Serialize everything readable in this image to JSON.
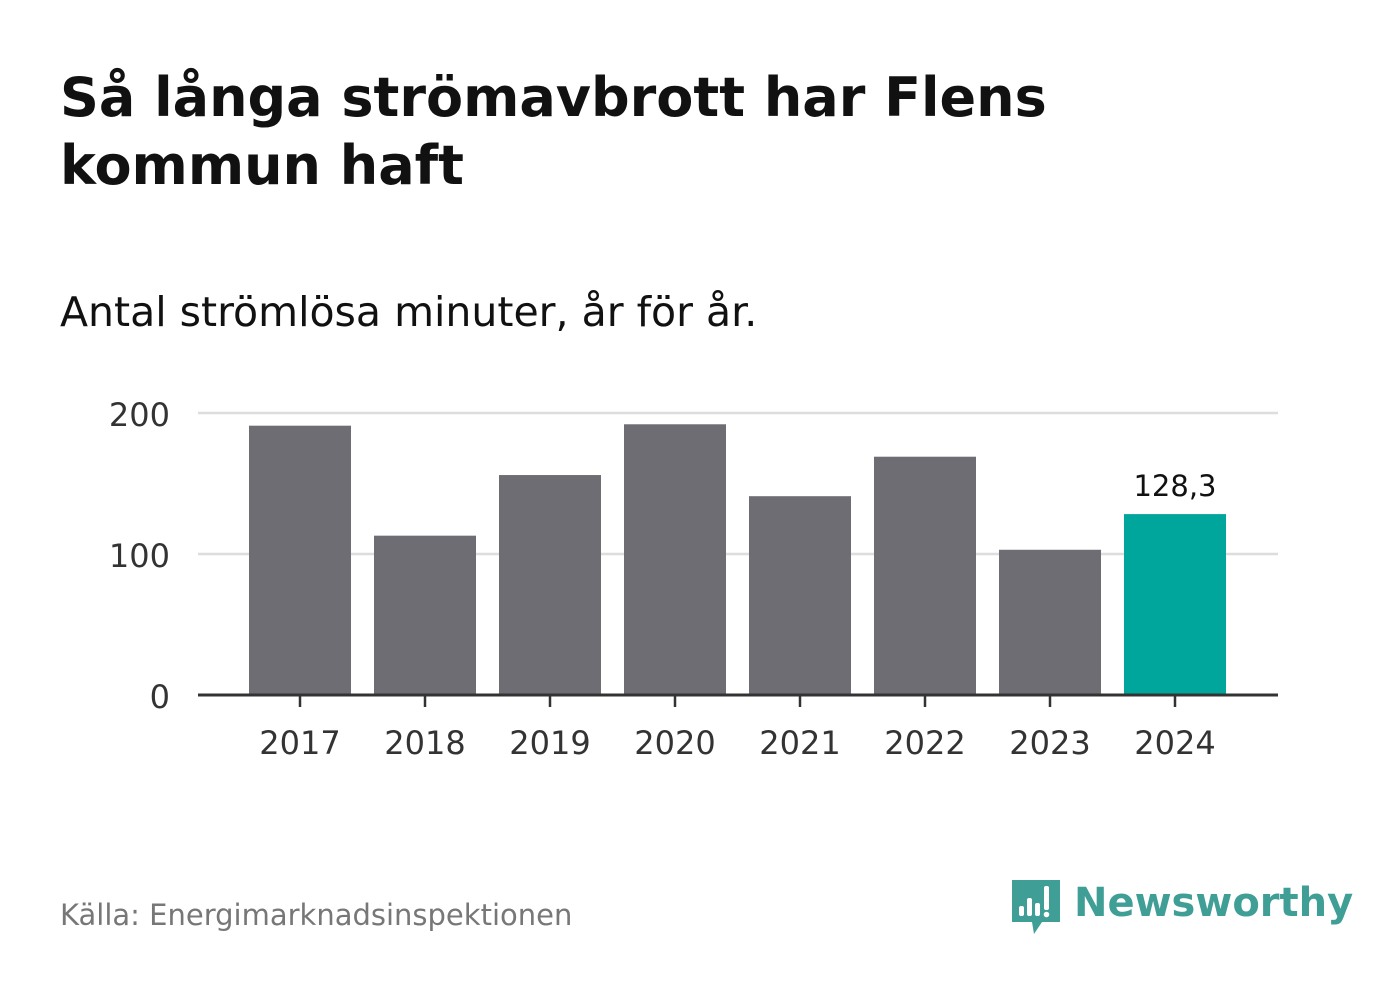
{
  "title": "Så långa strömavbrott har Flens kommun haft",
  "subtitle": "Antal strömlösa minuter, år för år.",
  "source": "Källa: Energimarknadsinspektionen",
  "brand": {
    "name": "Newsworthy",
    "color": "#3f9e95"
  },
  "colors": {
    "bar": "#6e6d73",
    "highlight": "#00a59b",
    "grid": "#dddddd",
    "axis": "#333333"
  },
  "chart_data": {
    "type": "bar",
    "categories": [
      "2017",
      "2018",
      "2019",
      "2020",
      "2021",
      "2022",
      "2023",
      "2024"
    ],
    "values": [
      191,
      113,
      156,
      192,
      141,
      169,
      103,
      128.3
    ],
    "highlight_index": 7,
    "data_labels": [
      {
        "index": 7,
        "text": "128,3"
      }
    ],
    "yticks": [
      0,
      100,
      200
    ],
    "ylim": [
      0,
      200
    ],
    "grid": true
  }
}
